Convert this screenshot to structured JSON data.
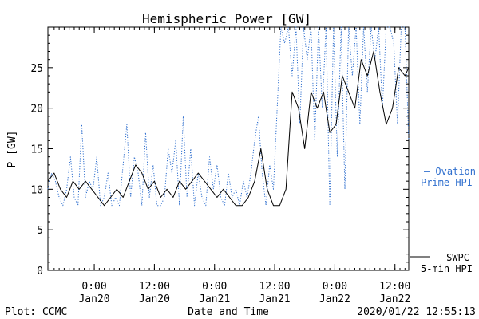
{
  "chart_data": {
    "type": "line",
    "title": "Hemispheric Power [GW]",
    "xlabel": "Date and Time",
    "ylabel": "P [GW]",
    "ylim": [
      0,
      30
    ],
    "yticks": [
      0,
      5,
      10,
      15,
      20,
      25
    ],
    "x_range": [
      "2020/01/19 14:45",
      "2020/01/22 14:45"
    ],
    "x_ticks": [
      {
        "t": "2020/01/20 00:00",
        "top": "0:00",
        "bottom": "Jan20"
      },
      {
        "t": "2020/01/20 12:00",
        "top": "12:00",
        "bottom": "Jan20"
      },
      {
        "t": "2020/01/21 00:00",
        "top": "0:00",
        "bottom": "Jan21"
      },
      {
        "t": "2020/01/21 12:00",
        "top": "12:00",
        "bottom": "Jan21"
      },
      {
        "t": "2020/01/22 00:00",
        "top": "0:00",
        "bottom": "Jan22"
      },
      {
        "t": "2020/01/22 12:00",
        "top": "12:00",
        "bottom": "Jan22"
      }
    ],
    "grid": false,
    "legend_position": "right",
    "series": [
      {
        "name": "Ovation Prime HPI",
        "legend_lines": [
          "— Ovation",
          "Prime HPI"
        ],
        "color": "#2f6fce",
        "style": "dotted",
        "x": [
          "2020/01/19 14:45",
          "2020/01/19 15:30",
          "2020/01/19 16:15",
          "2020/01/19 17:00",
          "2020/01/19 17:45",
          "2020/01/19 18:30",
          "2020/01/19 19:15",
          "2020/01/19 20:00",
          "2020/01/19 20:45",
          "2020/01/19 21:30",
          "2020/01/19 22:15",
          "2020/01/19 23:00",
          "2020/01/19 23:45",
          "2020/01/20 00:30",
          "2020/01/20 01:15",
          "2020/01/20 02:00",
          "2020/01/20 02:45",
          "2020/01/20 03:30",
          "2020/01/20 04:15",
          "2020/01/20 05:00",
          "2020/01/20 05:45",
          "2020/01/20 06:30",
          "2020/01/20 07:15",
          "2020/01/20 08:00",
          "2020/01/20 08:45",
          "2020/01/20 09:30",
          "2020/01/20 10:15",
          "2020/01/20 11:00",
          "2020/01/20 11:45",
          "2020/01/20 12:30",
          "2020/01/20 13:15",
          "2020/01/20 14:00",
          "2020/01/20 14:45",
          "2020/01/20 15:30",
          "2020/01/20 16:15",
          "2020/01/20 17:00",
          "2020/01/20 17:45",
          "2020/01/20 18:30",
          "2020/01/20 19:15",
          "2020/01/20 20:00",
          "2020/01/20 20:45",
          "2020/01/20 21:30",
          "2020/01/20 22:15",
          "2020/01/20 23:00",
          "2020/01/20 23:45",
          "2020/01/21 00:30",
          "2020/01/21 01:15",
          "2020/01/21 02:00",
          "2020/01/21 02:45",
          "2020/01/21 03:30",
          "2020/01/21 04:15",
          "2020/01/21 05:00",
          "2020/01/21 05:45",
          "2020/01/21 06:30",
          "2020/01/21 07:15",
          "2020/01/21 08:00",
          "2020/01/21 08:45",
          "2020/01/21 09:30",
          "2020/01/21 10:15",
          "2020/01/21 11:00",
          "2020/01/21 11:45",
          "2020/01/21 12:30",
          "2020/01/21 13:15",
          "2020/01/21 14:00",
          "2020/01/21 14:45",
          "2020/01/21 15:30",
          "2020/01/21 16:15",
          "2020/01/21 17:00",
          "2020/01/21 17:45",
          "2020/01/21 18:30",
          "2020/01/21 19:15",
          "2020/01/21 20:00",
          "2020/01/21 20:45",
          "2020/01/21 21:30",
          "2020/01/21 22:15",
          "2020/01/21 23:00",
          "2020/01/21 23:45",
          "2020/01/22 00:30",
          "2020/01/22 01:15",
          "2020/01/22 02:00",
          "2020/01/22 02:45",
          "2020/01/22 03:30",
          "2020/01/22 04:15",
          "2020/01/22 05:00",
          "2020/01/22 05:45",
          "2020/01/22 06:30",
          "2020/01/22 07:15",
          "2020/01/22 08:00",
          "2020/01/22 08:45",
          "2020/01/22 09:30",
          "2020/01/22 10:15",
          "2020/01/22 11:00",
          "2020/01/22 11:45",
          "2020/01/22 12:30",
          "2020/01/22 13:15",
          "2020/01/22 14:00",
          "2020/01/22 14:45"
        ],
        "y": [
          10,
          12,
          11,
          9,
          8,
          10,
          14,
          9,
          8,
          18,
          9,
          11,
          10,
          14,
          8,
          9,
          12,
          8,
          9,
          8,
          13,
          18,
          9,
          14,
          12,
          8,
          17,
          9,
          13,
          8,
          8,
          9,
          15,
          12,
          16,
          8,
          19,
          9,
          15,
          8,
          12,
          9,
          8,
          14,
          10,
          13,
          9,
          8,
          12,
          9,
          10,
          8,
          11,
          9,
          12,
          16,
          19,
          12,
          8,
          13,
          10,
          20,
          30,
          28,
          30,
          24,
          30,
          18,
          30,
          26,
          30,
          16,
          30,
          20,
          30,
          8,
          30,
          14,
          30,
          10,
          30,
          24,
          30,
          18,
          30,
          22,
          30,
          26,
          30,
          20,
          30,
          30,
          28,
          18,
          30,
          30,
          16
        ]
      },
      {
        "name": "SWPC 5-min HPI",
        "legend_lines": [
          "SWPC",
          "5-min HPI"
        ],
        "color": "#000000",
        "style": "solid",
        "x": [
          "2020/01/19 14:45",
          "2020/01/19 16:00",
          "2020/01/19 17:15",
          "2020/01/19 18:30",
          "2020/01/19 19:45",
          "2020/01/19 21:00",
          "2020/01/19 22:15",
          "2020/01/19 23:30",
          "2020/01/20 00:45",
          "2020/01/20 02:00",
          "2020/01/20 03:15",
          "2020/01/20 04:30",
          "2020/01/20 05:45",
          "2020/01/20 07:00",
          "2020/01/20 08:15",
          "2020/01/20 09:30",
          "2020/01/20 10:45",
          "2020/01/20 12:00",
          "2020/01/20 13:15",
          "2020/01/20 14:30",
          "2020/01/20 15:45",
          "2020/01/20 17:00",
          "2020/01/20 18:15",
          "2020/01/20 19:30",
          "2020/01/20 20:45",
          "2020/01/20 22:00",
          "2020/01/20 23:15",
          "2020/01/21 00:30",
          "2020/01/21 01:45",
          "2020/01/21 03:00",
          "2020/01/21 04:15",
          "2020/01/21 05:30",
          "2020/01/21 06:45",
          "2020/01/21 08:00",
          "2020/01/21 09:15",
          "2020/01/21 10:30",
          "2020/01/21 11:45",
          "2020/01/21 13:00",
          "2020/01/21 14:15",
          "2020/01/21 15:30",
          "2020/01/21 16:45",
          "2020/01/21 18:00",
          "2020/01/21 19:15",
          "2020/01/21 20:30",
          "2020/01/21 21:45",
          "2020/01/21 23:00",
          "2020/01/22 00:15",
          "2020/01/22 01:30",
          "2020/01/22 02:45",
          "2020/01/22 04:00",
          "2020/01/22 05:15",
          "2020/01/22 06:30",
          "2020/01/22 07:45",
          "2020/01/22 09:00",
          "2020/01/22 10:15",
          "2020/01/22 11:30",
          "2020/01/22 12:45",
          "2020/01/22 14:00",
          "2020/01/22 14:45"
        ],
        "y": [
          11,
          12,
          10,
          9,
          11,
          10,
          11,
          10,
          9,
          8,
          9,
          10,
          9,
          11,
          13,
          12,
          10,
          11,
          9,
          10,
          9,
          11,
          10,
          11,
          12,
          11,
          10,
          9,
          10,
          9,
          8,
          8,
          9,
          11,
          15,
          10,
          8,
          8,
          10,
          22,
          20,
          15,
          22,
          20,
          22,
          17,
          18,
          24,
          22,
          20,
          26,
          24,
          27,
          22,
          18,
          20,
          25,
          24,
          25
        ]
      }
    ]
  },
  "footer": {
    "plot_credit": "Plot: CCMC",
    "timestamp": "2020/01/22 12:55:13"
  }
}
